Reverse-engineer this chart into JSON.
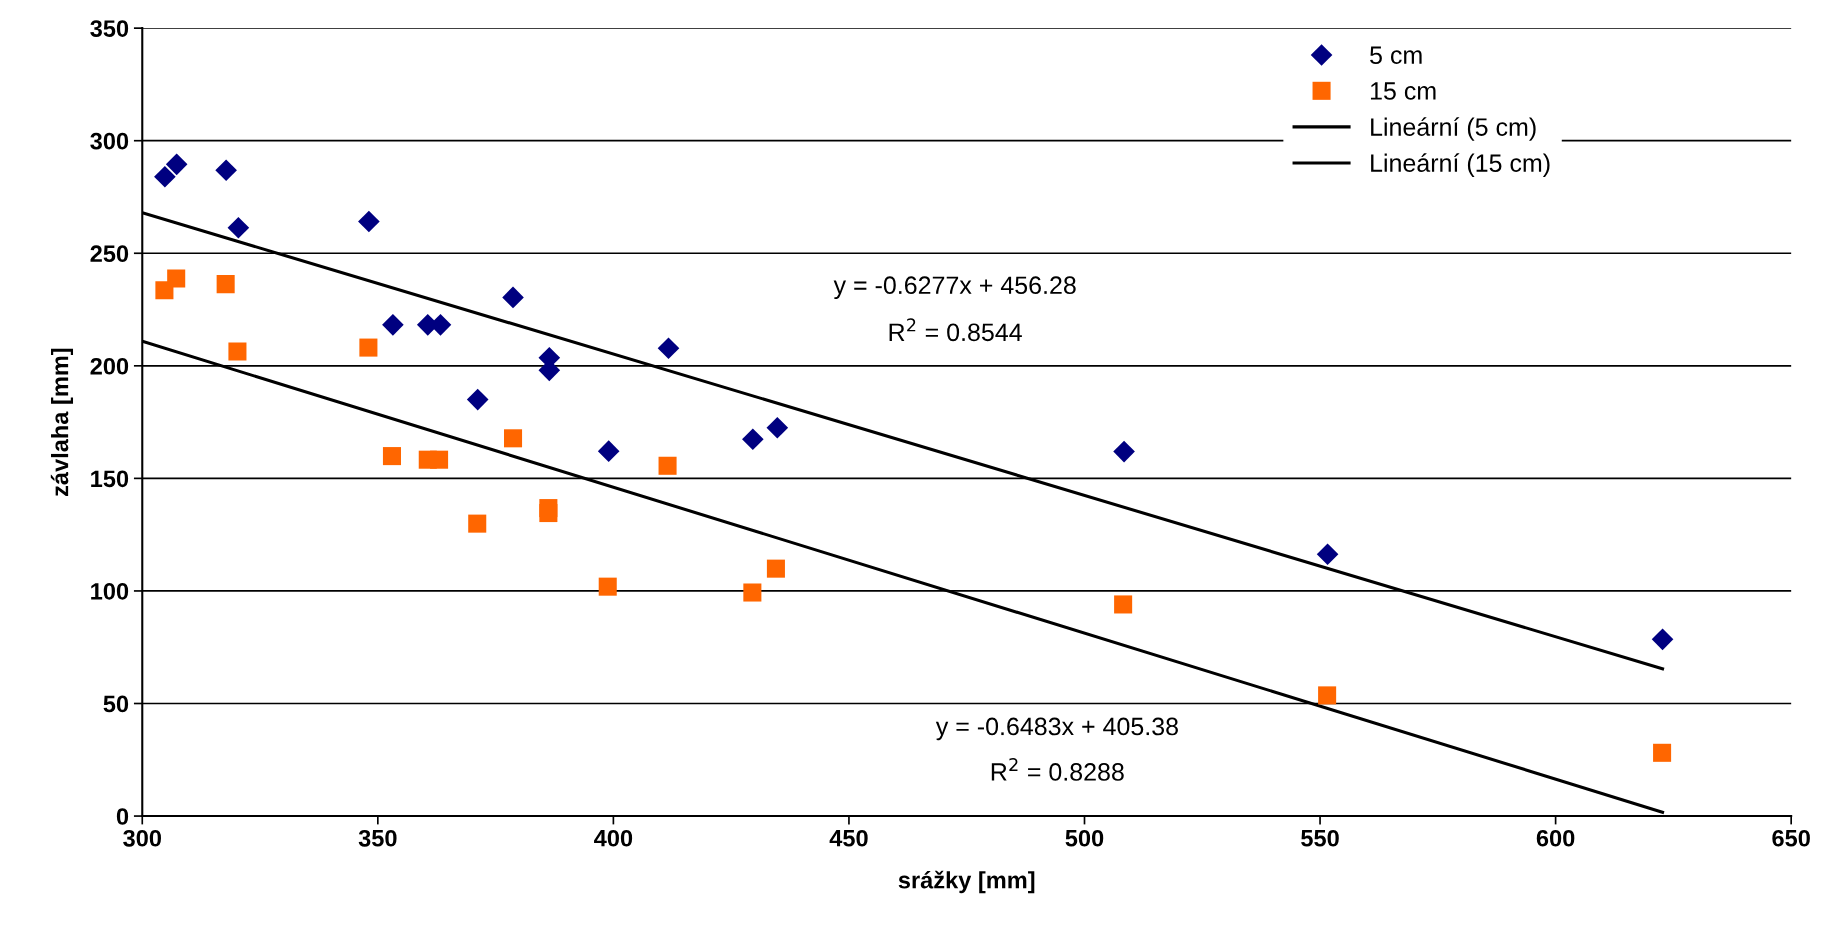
{
  "chart_data": {
    "type": "scatter",
    "xlabel": "srážky [mm]",
    "ylabel": "závlaha [mm]",
    "xlim": [
      300,
      650
    ],
    "xticks": [
      300,
      350,
      400,
      450,
      500,
      550,
      600,
      650
    ],
    "ylim": [
      0,
      350
    ],
    "yticks": [
      0,
      50,
      100,
      150,
      200,
      250,
      300,
      350
    ],
    "grid": "y",
    "legend": "top right",
    "series": [
      {
        "name": "5 cm",
        "marker": "diamond",
        "color": "#000080",
        "x": [
          304.8,
          307.3,
          317.8,
          320.4,
          348.1,
          353.2,
          360.6,
          363.3,
          378.7,
          386.4,
          386.4,
          371.2,
          399.0,
          411.7,
          429.6,
          434.8,
          508.4,
          551.6,
          622.7
        ],
        "values": [
          284.0,
          289.5,
          286.9,
          261.3,
          264.1,
          218.2,
          218.2,
          218.2,
          230.4,
          203.6,
          198.0,
          185.0,
          162.1,
          207.8,
          167.4,
          172.5,
          161.9,
          116.3,
          78.5
        ]
      },
      {
        "name": "15 cm",
        "marker": "square",
        "color": "#ff6600",
        "x": [
          304.7,
          307.2,
          317.7,
          320.2,
          348.0,
          353.0,
          360.6,
          363.0,
          378.7,
          371.1,
          386.2,
          386.2,
          411.5,
          398.8,
          429.5,
          434.5,
          508.2,
          551.5,
          622.6
        ],
        "values": [
          233.6,
          238.8,
          236.3,
          206.4,
          208.1,
          159.9,
          158.3,
          158.3,
          167.8,
          129.9,
          136.8,
          134.6,
          155.6,
          101.9,
          99.3,
          109.9,
          94.0,
          53.6,
          28.1
        ]
      },
      {
        "name": "Lineární (5 cm)",
        "type": "line",
        "marker": "none",
        "line_style": "solid",
        "color": "#000000",
        "x": [
          300,
          622.7
        ],
        "values": [
          268.0,
          65.4
        ]
      },
      {
        "name": "Lineární (15 cm)",
        "type": "line",
        "marker": "none",
        "line_style": "solid",
        "color": "#000000",
        "x": [
          300,
          622.7
        ],
        "values": [
          210.9,
          1.7
        ]
      }
    ],
    "annotations": [
      "y = -0.6277x + 456.28",
      "R$^{2}$ = 0.8544",
      "y = -0.6483x + 405.38",
      "R$^{2}$ = 0.8288"
    ]
  }
}
